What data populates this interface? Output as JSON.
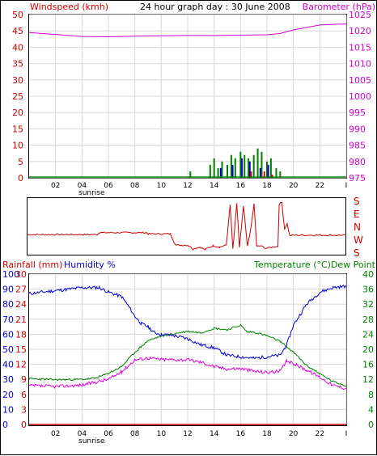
{
  "chart_data": [
    {
      "type": "line",
      "title": "24 hour graph day : 30 June 2008",
      "x": {
        "ticks": [
          "02",
          "04",
          "06",
          "08",
          "10",
          "12",
          "14",
          "16",
          "18",
          "20",
          "22",
          "I"
        ],
        "sub_label": "sunrise",
        "range": [
          0,
          24
        ]
      },
      "left_axis": {
        "label": "Windspeed (kmh)",
        "ticks": [
          0,
          5,
          10,
          15,
          20,
          25,
          30,
          35,
          40,
          45,
          50
        ],
        "range": [
          0,
          50
        ]
      },
      "right_axis": {
        "label": "Barometer (hPa)",
        "ticks": [
          975,
          980,
          985,
          990,
          995,
          1000,
          1005,
          1010,
          1015,
          1020,
          1025
        ],
        "range": [
          975,
          1025
        ]
      },
      "series": [
        {
          "name": "Barometer (hPa)",
          "color": "#d000d0",
          "points": [
            [
              0,
              1019.5
            ],
            [
              2,
              1018.9
            ],
            [
              4,
              1018.3
            ],
            [
              6,
              1018.2
            ],
            [
              8,
              1018.4
            ],
            [
              10,
              1018.5
            ],
            [
              12,
              1018.6
            ],
            [
              14,
              1018.6
            ],
            [
              16,
              1018.7
            ],
            [
              18,
              1018.8
            ],
            [
              19,
              1019.2
            ],
            [
              20,
              1020.3
            ],
            [
              22,
              1021.8
            ],
            [
              23,
              1022.0
            ],
            [
              24,
              1022.1
            ]
          ]
        },
        {
          "name": "Windspeed (kmh)",
          "color": "#008000",
          "bars": [
            [
              12.2,
              2
            ],
            [
              13.7,
              4
            ],
            [
              14,
              6
            ],
            [
              14.3,
              3
            ],
            [
              14.6,
              5
            ],
            [
              15,
              4
            ],
            [
              15.3,
              7
            ],
            [
              15.6,
              6
            ],
            [
              16,
              8
            ],
            [
              16.3,
              7
            ],
            [
              16.6,
              6
            ],
            [
              17,
              7
            ],
            [
              17.3,
              9
            ],
            [
              17.6,
              8
            ],
            [
              18,
              5
            ],
            [
              18.3,
              6
            ],
            [
              18.7,
              3
            ],
            [
              19,
              2
            ]
          ],
          "gusts": [
            [
              14.5,
              3
            ],
            [
              15.4,
              4
            ],
            [
              16.1,
              6
            ],
            [
              16.7,
              5
            ],
            [
              17.5,
              3
            ],
            [
              18.1,
              4
            ]
          ],
          "gust_color": "#0000cc",
          "accent": [
            [
              16.8,
              2
            ],
            [
              17.8,
              2
            ],
            [
              18.4,
              1
            ]
          ],
          "accent_color": "#dd0000"
        }
      ]
    },
    {
      "type": "line",
      "direction_labels": [
        "S",
        "E",
        "N",
        "W",
        "S"
      ],
      "color": "#cc0000",
      "points": [
        [
          0,
          1.35
        ],
        [
          5.3,
          1.35
        ],
        [
          5.4,
          1.5
        ],
        [
          9,
          1.5
        ],
        [
          9.1,
          1.4
        ],
        [
          10.8,
          1.4
        ],
        [
          11,
          0.9
        ],
        [
          11.2,
          0.5
        ],
        [
          12.1,
          0.5
        ],
        [
          12.5,
          0.2
        ],
        [
          13,
          0.35
        ],
        [
          13.4,
          0.15
        ],
        [
          14,
          0.45
        ],
        [
          14.5,
          0.35
        ],
        [
          15,
          0.5
        ],
        [
          15.3,
          3.7
        ],
        [
          15.5,
          0.2
        ],
        [
          15.8,
          3.8
        ],
        [
          16,
          0.3
        ],
        [
          16.3,
          3.6
        ],
        [
          16.6,
          0.4
        ],
        [
          16.9,
          2.1
        ],
        [
          17.1,
          3.8
        ],
        [
          17.3,
          0.4
        ],
        [
          17.6,
          0.45
        ],
        [
          18,
          0.25
        ],
        [
          18.5,
          0.35
        ],
        [
          18.9,
          0.4
        ],
        [
          19,
          3.8
        ],
        [
          19.2,
          3.9
        ],
        [
          19.4,
          1.8
        ],
        [
          19.6,
          2.2
        ],
        [
          19.8,
          1.25
        ],
        [
          20,
          1.3
        ],
        [
          24,
          1.3
        ]
      ]
    },
    {
      "type": "line",
      "x": {
        "ticks": [
          "02",
          "04",
          "06",
          "08",
          "10",
          "12",
          "14",
          "16",
          "18",
          "20",
          "22",
          "I"
        ],
        "sub_label": "sunrise",
        "range": [
          0,
          24
        ]
      },
      "left_axis_1": {
        "label": "Rainfall (mm)",
        "ticks": [
          0,
          3,
          6,
          9,
          12,
          15,
          18,
          21,
          24,
          27,
          30
        ],
        "range": [
          0,
          30
        ]
      },
      "left_axis_2": {
        "label": "Humidity %",
        "ticks": [
          0,
          10,
          20,
          30,
          40,
          50,
          60,
          70,
          80,
          90,
          100
        ],
        "range": [
          0,
          100
        ]
      },
      "right_axis": {
        "label": "Temperature (°C)Dew Point",
        "ticks": [
          0,
          4,
          8,
          12,
          16,
          20,
          24,
          28,
          32,
          36,
          40
        ],
        "range": [
          0,
          40
        ]
      },
      "series": [
        {
          "name": "Humidity %",
          "color": "#0000cc",
          "points": [
            [
              0,
              87
            ],
            [
              2,
              89
            ],
            [
              4,
              91
            ],
            [
              5.3,
              91
            ],
            [
              6,
              88
            ],
            [
              7,
              85
            ],
            [
              7.5,
              79
            ],
            [
              8,
              72
            ],
            [
              8.5,
              67
            ],
            [
              9,
              65
            ],
            [
              9.5,
              61
            ],
            [
              10,
              60
            ],
            [
              11,
              59
            ],
            [
              12,
              57
            ],
            [
              13,
              53
            ],
            [
              14,
              51
            ],
            [
              15,
              46
            ],
            [
              16,
              45
            ],
            [
              17,
              44
            ],
            [
              18,
              45
            ],
            [
              19,
              46
            ],
            [
              19.5,
              53
            ],
            [
              20,
              66
            ],
            [
              21,
              80
            ],
            [
              22,
              88
            ],
            [
              23,
              91
            ],
            [
              24,
              92
            ]
          ]
        },
        {
          "name": "Temperature (°C)",
          "color": "#008000",
          "points": [
            [
              0,
              12.2
            ],
            [
              2,
              11.9
            ],
            [
              4,
              12
            ],
            [
              5,
              12.3
            ],
            [
              6,
              13.6
            ],
            [
              7,
              15.4
            ],
            [
              8,
              19.2
            ],
            [
              9,
              22.3
            ],
            [
              10,
              23.5
            ],
            [
              12,
              24.8
            ],
            [
              13,
              24.4
            ],
            [
              14,
              25.6
            ],
            [
              15,
              25.2
            ],
            [
              16,
              26.4
            ],
            [
              16.5,
              24.6
            ],
            [
              17,
              24.6
            ],
            [
              18,
              23.6
            ],
            [
              19,
              22.1
            ],
            [
              20,
              19.2
            ],
            [
              21,
              15.7
            ],
            [
              22,
              13.5
            ],
            [
              23,
              11.4
            ],
            [
              24,
              10.3
            ]
          ]
        },
        {
          "name": "Dew Point",
          "color": "#e000e0",
          "points": [
            [
              0,
              10.3
            ],
            [
              2,
              10.1
            ],
            [
              4,
              10.5
            ],
            [
              6,
              12
            ],
            [
              7,
              14
            ],
            [
              8,
              17.2
            ],
            [
              9,
              17.7
            ],
            [
              10,
              17.3
            ],
            [
              12,
              17.2
            ],
            [
              13,
              16.6
            ],
            [
              14,
              15.4
            ],
            [
              15,
              14.8
            ],
            [
              16,
              14.9
            ],
            [
              17,
              14.2
            ],
            [
              18,
              13.9
            ],
            [
              19,
              14.1
            ],
            [
              19.5,
              16.9
            ],
            [
              20,
              16.2
            ],
            [
              21,
              14.5
            ],
            [
              22,
              12.6
            ],
            [
              23,
              10.4
            ],
            [
              24,
              9.6
            ]
          ]
        },
        {
          "name": "Rainfall (mm)",
          "color": "#cc0000",
          "points": [
            [
              0,
              0
            ],
            [
              24,
              0
            ]
          ]
        }
      ]
    }
  ]
}
